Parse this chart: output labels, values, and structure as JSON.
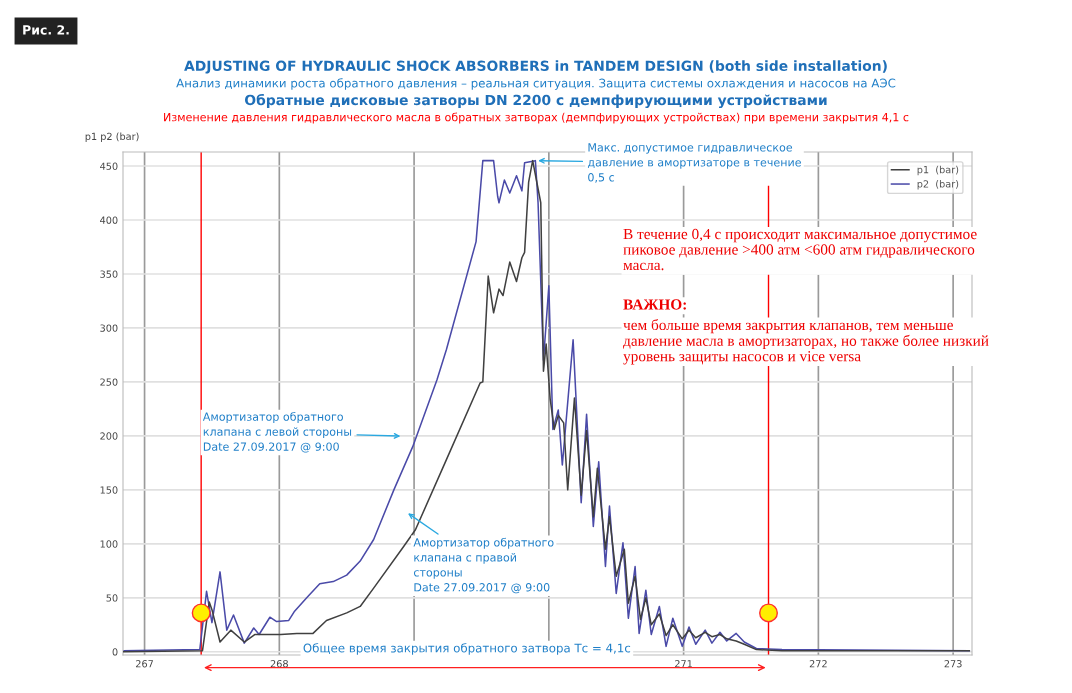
{
  "chart_data": {
    "type": "line",
    "title": "ADJUSTING OF HYDRAULIC SHOCK ABSORBERS in TANDEM DESIGN (both side installation)",
    "subtitle": "Анализ динамики роста обратного давления – реальная ситуация. Защита системы охлаждения и насосов на АЭС\nОбратные дисковые затворы DN 2200 с демпфирующими устройствами\nИзменение давления гидравлического масла в обратных затворах (демпфирующих устройствах) при времени закрытия 4,1 с",
    "ylabel": "p1 p2 (bar)",
    "xlim": [
      266.84,
      273.14
    ],
    "xticks": [
      267,
      268,
      {
        "value": 269,
        "label": null
      },
      {
        "value": 270,
        "label": null
      },
      271,
      272,
      273
    ],
    "ylim": [
      -3,
      463
    ],
    "yticks": [
      0,
      50,
      100,
      150,
      200,
      250,
      300,
      350,
      400,
      450
    ],
    "grid": true,
    "legend": "top right",
    "marker": "none",
    "line_style": "solid",
    "series": [
      {
        "name": "p1  (bar)",
        "color": "#404040",
        "x": [
          266.84,
          267.43,
          267.48,
          267.5,
          267.56,
          267.64,
          267.74,
          267.82,
          268.01,
          268.13,
          268.25,
          268.35,
          268.5,
          268.6,
          268.7,
          268.92,
          269.01,
          269.24,
          269.49,
          269.51,
          269.55,
          269.59,
          269.63,
          269.66,
          269.71,
          269.76,
          269.8,
          269.82,
          269.85,
          269.88,
          269.94,
          269.96,
          269.98,
          270.01,
          270.04,
          270.07,
          270.11,
          270.14,
          270.19,
          270.24,
          270.28,
          270.33,
          270.36,
          270.42,
          270.45,
          270.5,
          270.56,
          270.59,
          270.64,
          270.68,
          270.72,
          270.76,
          270.82,
          270.87,
          270.92,
          270.99,
          271.04,
          271.09,
          271.16,
          271.21,
          271.27,
          271.32,
          271.39,
          271.45,
          271.54,
          271.73,
          273.12
        ],
        "values": [
          0,
          1,
          46,
          39,
          9,
          20,
          9,
          16,
          16,
          17,
          17,
          29,
          36,
          42,
          59,
          97,
          113,
          178,
          249,
          250,
          348,
          314,
          336,
          330,
          361,
          343,
          365,
          370,
          435,
          455,
          416,
          260,
          285,
          234,
          206,
          219,
          212,
          150,
          235,
          145,
          205,
          125,
          170,
          95,
          125,
          70,
          95,
          45,
          70,
          30,
          50,
          25,
          35,
          15,
          25,
          12,
          20,
          13,
          18,
          14,
          16,
          12,
          10,
          7,
          2,
          1,
          1
        ]
      },
      {
        "name": "p2  (bar)",
        "color": "#4a4aa8",
        "x": [
          266.84,
          267.41,
          267.46,
          267.5,
          267.56,
          267.61,
          267.66,
          267.74,
          267.81,
          267.85,
          267.93,
          267.98,
          268.07,
          268.11,
          268.21,
          268.3,
          268.4,
          268.5,
          268.6,
          268.7,
          268.85,
          268.99,
          269.17,
          269.24,
          269.46,
          269.51,
          269.59,
          269.62,
          269.63,
          269.67,
          269.71,
          269.76,
          269.8,
          269.82,
          269.9,
          269.92,
          269.96,
          270.0,
          270.03,
          270.07,
          270.1,
          270.18,
          270.24,
          270.28,
          270.33,
          270.37,
          270.42,
          270.45,
          270.5,
          270.55,
          270.59,
          270.64,
          270.67,
          270.72,
          270.76,
          270.82,
          270.87,
          270.92,
          270.99,
          271.04,
          271.09,
          271.16,
          271.21,
          271.27,
          271.32,
          271.39,
          271.45,
          271.54,
          271.73,
          273.12
        ],
        "values": [
          1,
          2,
          56,
          27,
          74,
          20,
          34,
          8,
          22,
          16,
          32,
          28,
          29,
          37,
          51,
          63,
          65,
          71,
          84,
          104,
          150,
          190,
          252,
          280,
          380,
          455,
          455,
          422,
          416,
          437,
          425,
          441,
          427,
          453,
          455,
          416,
          270,
          339,
          206,
          224,
          173,
          289,
          138,
          220,
          116,
          176,
          79,
          135,
          54,
          101,
          31,
          79,
          17,
          57,
          16,
          42,
          5,
          31,
          5,
          23,
          7,
          20,
          8,
          18,
          10,
          17,
          9,
          3,
          2,
          1
        ]
      }
    ],
    "ref_lines": [
      {
        "axis": "x",
        "value": 267.42,
        "color": "#ff0000"
      },
      {
        "axis": "x",
        "value": 271.63,
        "color": "#ff0000"
      }
    ],
    "annotations": [
      "Рис. 2.",
      {
        "text": "Макс. допустимое гидравлическое\nдавление в амортизаторе в течение\n0,5 с",
        "x": 269.9,
        "y": 455
      },
      "В течение 0,4 с происходит максимальное допустимое\nпиковое давление >400 атм <600 атм гидравлического\nмасла.",
      "ВАЖНО:",
      "чем больше время закрытия клапанов, тем меньше\nдавление масла в амортизаторах, но также более низкий\nуровень защиты насосов и vice versa",
      "Амортизатор обратного\nклапана с левой стороны\nDate 27.09.2017 @ 9:00",
      "Амортизатор обратного\nклапана с правой\nстороны\nDate 27.09.2017 @ 9:00",
      "Общее время закрытия обратного затвора Тс = 4,1с"
    ]
  }
}
